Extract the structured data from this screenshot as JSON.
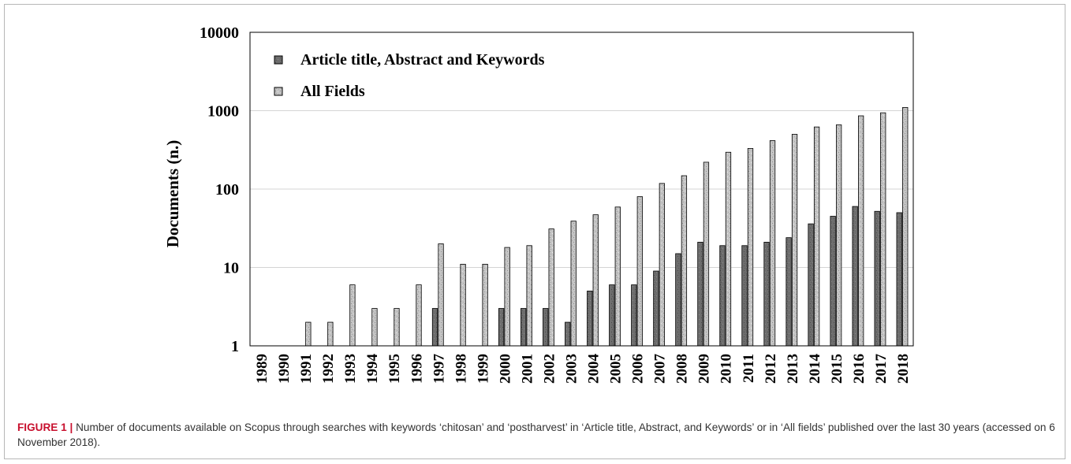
{
  "figure": {
    "label": "FIGURE 1",
    "separator": "|",
    "caption": "Number of documents available on Scopus through searches with keywords ‘chitosan’ and ‘postharvest’ in ‘Article title, Abstract, and Keywords’ or in ‘All fields’ published over the last 30 years (accessed on 6 November 2018)."
  },
  "chart_data": {
    "type": "bar",
    "title": "",
    "xlabel": "",
    "ylabel": "Documents (n.)",
    "yscale": "log",
    "ylim": [
      1,
      10000
    ],
    "yticks": [
      "1",
      "10",
      "100",
      "1000",
      "10000"
    ],
    "grid": "horizontal major gridlines",
    "legend_position": "top-left",
    "categories": [
      "1989",
      "1990",
      "1991",
      "1992",
      "1993",
      "1994",
      "1995",
      "1996",
      "1997",
      "1998",
      "1999",
      "2000",
      "2001",
      "2002",
      "2003",
      "2004",
      "2005",
      "2006",
      "2007",
      "2008",
      "2009",
      "2010",
      "2011",
      "2012",
      "2013",
      "2014",
      "2015",
      "2016",
      "2017",
      "2018"
    ],
    "series": [
      {
        "name": "Article title, Abstract and Keywords",
        "color": "#6b6b6b",
        "values": [
          null,
          null,
          null,
          null,
          null,
          null,
          null,
          null,
          3,
          null,
          null,
          3,
          3,
          3,
          2,
          5,
          6,
          6,
          9,
          15,
          21,
          19,
          19,
          21,
          24,
          36,
          45,
          60,
          52,
          50
        ]
      },
      {
        "name": "All Fields",
        "color": "#bdbdbd",
        "values": [
          null,
          null,
          2,
          2,
          6,
          3,
          3,
          6,
          20,
          11,
          11,
          18,
          19,
          31,
          39,
          47,
          59,
          80,
          118,
          148,
          220,
          295,
          330,
          415,
          500,
          620,
          660,
          860,
          940,
          1100
        ]
      }
    ]
  }
}
